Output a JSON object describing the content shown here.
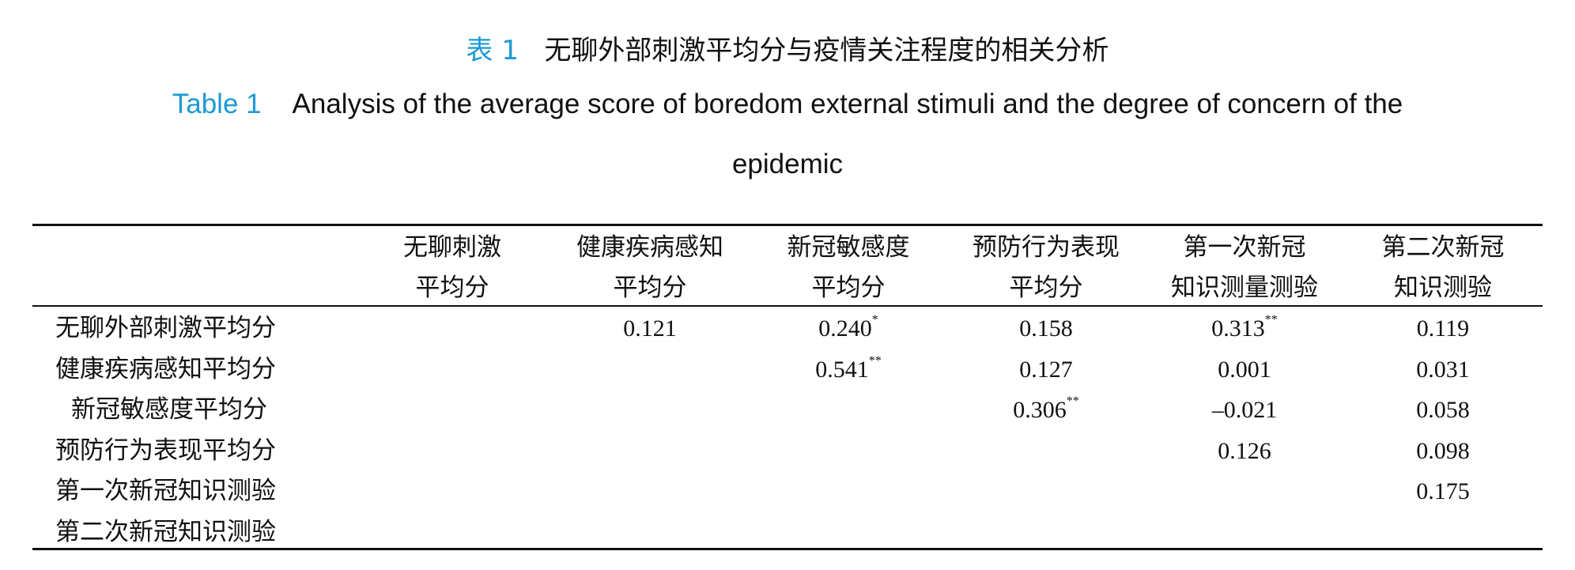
{
  "caption": {
    "zh_label": "表 1",
    "zh_title": "无聊外部刺激平均分与疫情关注程度的相关分析",
    "en_label": "Table 1",
    "en_title_line1": "Analysis of the average score of boredom external stimuli and the degree of concern of the",
    "en_title_line2": "epidemic"
  },
  "table": {
    "columns": [
      [
        "无聊刺激",
        "平均分"
      ],
      [
        "健康疾病感知",
        "平均分"
      ],
      [
        "新冠敏感度",
        "平均分"
      ],
      [
        "预防行为表现",
        "平均分"
      ],
      [
        "第一次新冠",
        "知识测量测验"
      ],
      [
        "第二次新冠",
        "知识测验"
      ]
    ],
    "rows": [
      {
        "label": "无聊外部刺激平均分",
        "cells": [
          {
            "v": ""
          },
          {
            "v": "0.121"
          },
          {
            "v": "0.240",
            "s": "*"
          },
          {
            "v": "0.158"
          },
          {
            "v": "0.313",
            "s": "**"
          },
          {
            "v": "0.119"
          }
        ]
      },
      {
        "label": "健康疾病感知平均分",
        "cells": [
          {
            "v": ""
          },
          {
            "v": ""
          },
          {
            "v": "0.541",
            "s": "**"
          },
          {
            "v": "0.127"
          },
          {
            "v": "0.001"
          },
          {
            "v": "0.031"
          }
        ]
      },
      {
        "label": "新冠敏感度平均分",
        "cells": [
          {
            "v": ""
          },
          {
            "v": ""
          },
          {
            "v": ""
          },
          {
            "v": "0.306",
            "s": "**"
          },
          {
            "v": "–0.021"
          },
          {
            "v": "0.058"
          }
        ]
      },
      {
        "label": "预防行为表现平均分",
        "cells": [
          {
            "v": ""
          },
          {
            "v": ""
          },
          {
            "v": ""
          },
          {
            "v": ""
          },
          {
            "v": "0.126"
          },
          {
            "v": "0.098"
          }
        ]
      },
      {
        "label": "第一次新冠知识测验",
        "cells": [
          {
            "v": ""
          },
          {
            "v": ""
          },
          {
            "v": ""
          },
          {
            "v": ""
          },
          {
            "v": ""
          },
          {
            "v": "0.175"
          }
        ]
      },
      {
        "label": "第二次新冠知识测验",
        "cells": [
          {
            "v": ""
          },
          {
            "v": ""
          },
          {
            "v": ""
          },
          {
            "v": ""
          },
          {
            "v": ""
          },
          {
            "v": ""
          }
        ]
      }
    ]
  },
  "colors": {
    "caption_label": "#1a9ad6"
  }
}
